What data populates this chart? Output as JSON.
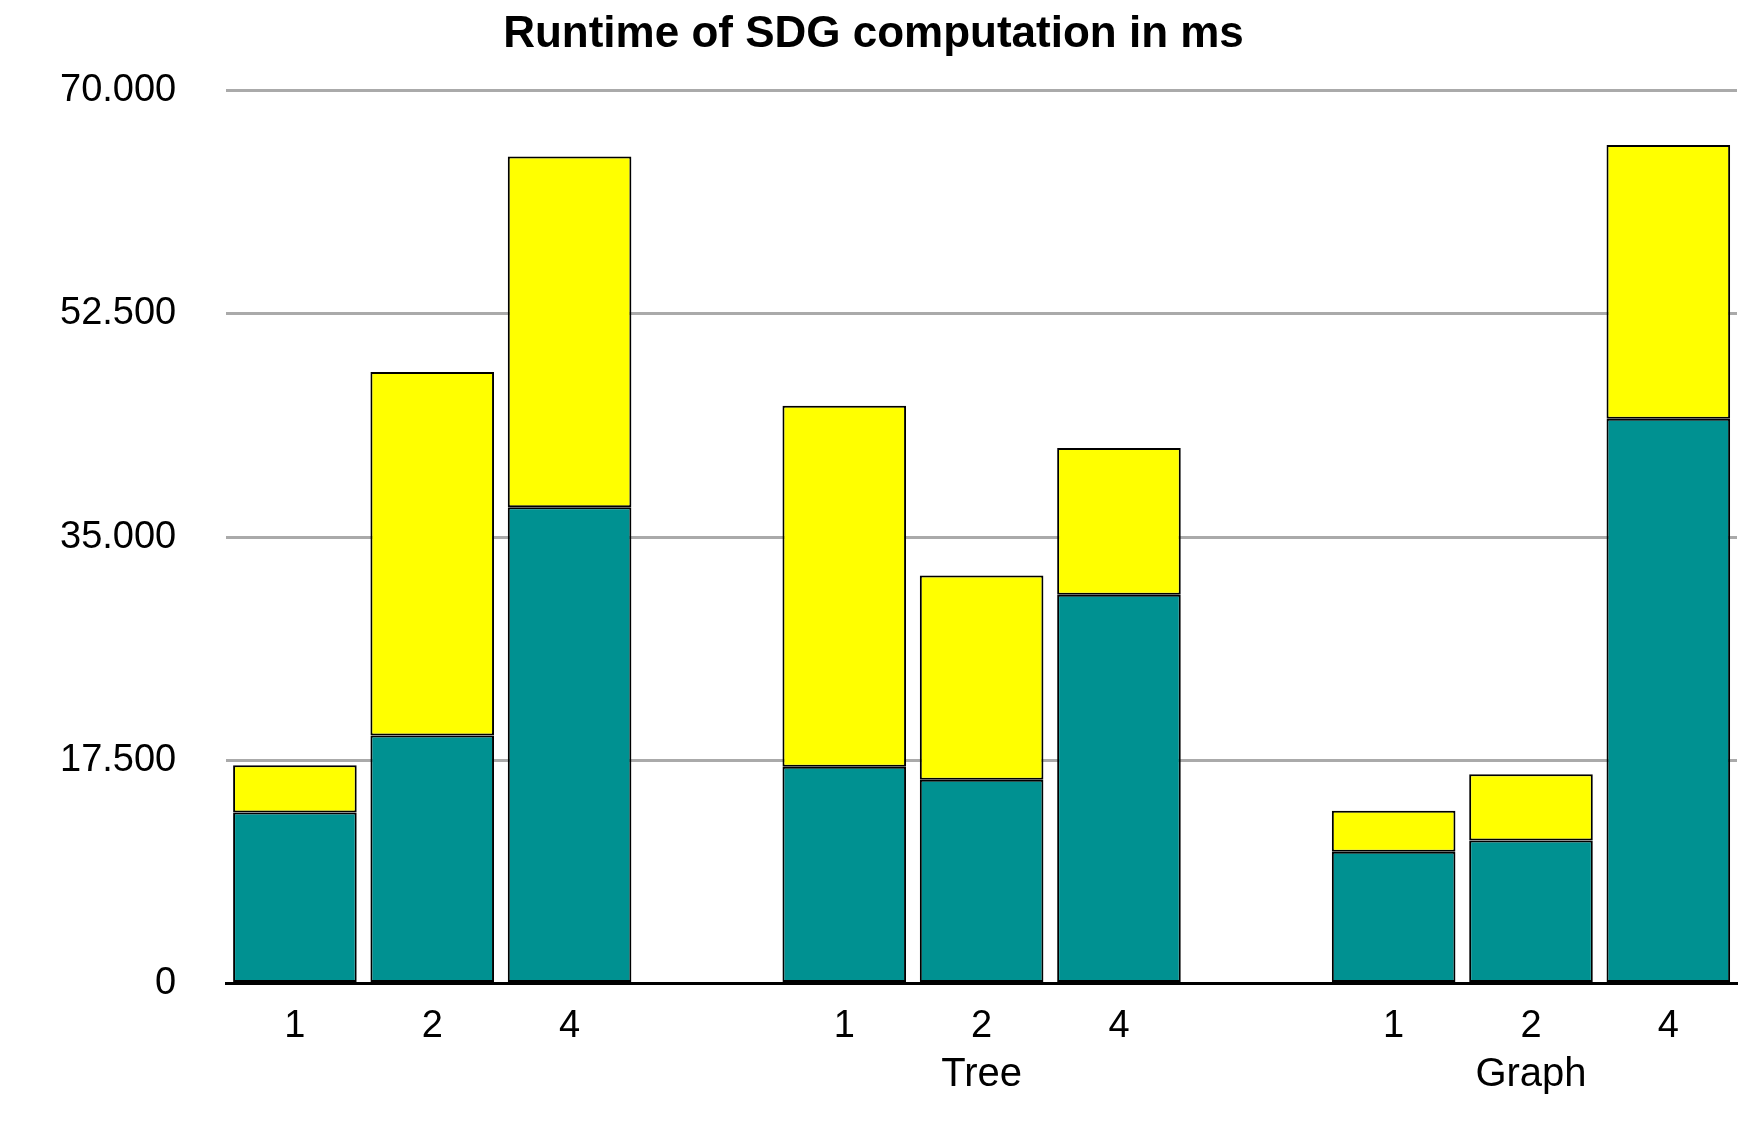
{
  "chart_data": {
    "type": "bar",
    "title": "Runtime of SDG computation in ms",
    "stacked": true,
    "categories": [
      "1",
      "2",
      "4",
      null,
      "1",
      "2",
      "4",
      null,
      "1",
      "2",
      "4"
    ],
    "series": [
      {
        "color": "#009191",
        "values": [
          13400,
          19450,
          37350,
          null,
          17000,
          15980,
          30480,
          null,
          10330,
          11200,
          44290
        ]
      },
      {
        "color": "#ffff00",
        "values": [
          3700,
          28500,
          27500,
          null,
          28300,
          16000,
          11500,
          null,
          3200,
          5200,
          21450
        ]
      }
    ],
    "ylim": [
      0,
      70000
    ],
    "yticks": [
      0,
      {
        "value": 17500,
        "label": "17.500"
      },
      {
        "value": 35000,
        "label": "35.000"
      },
      {
        "value": 52500,
        "label": "52.500"
      },
      {
        "value": 70000,
        "label": "70.000"
      }
    ],
    "grid": "y",
    "annotations": [
      "Tree",
      "Graph"
    ]
  }
}
